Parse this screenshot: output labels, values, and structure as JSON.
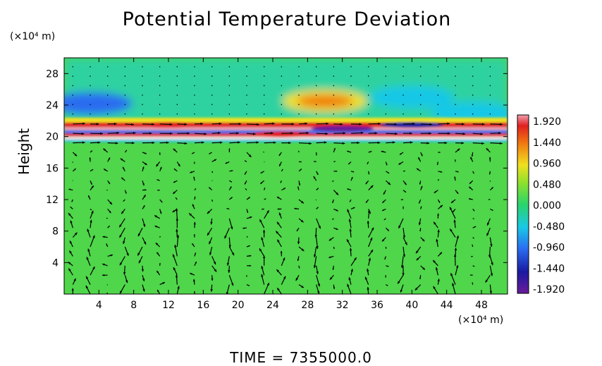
{
  "chart_data": {
    "type": "heatmap",
    "title": "Potential Temperature Deviation",
    "ylabel": "Height",
    "xunit": "(×10⁴ m)",
    "yunit": "(×10⁴ m)",
    "footer": "TIME  =  7355000.0",
    "xlim": [
      0,
      51
    ],
    "ylim": [
      0,
      30
    ],
    "xticks": [
      "4",
      "8",
      "12",
      "16",
      "20",
      "24",
      "28",
      "32",
      "36",
      "40",
      "44",
      "48"
    ],
    "yticks": [
      "4",
      "8",
      "12",
      "16",
      "20",
      "24",
      "28"
    ],
    "colorbar": {
      "min": -1.92,
      "max": 1.92,
      "labels": [
        "1.920",
        "1.440",
        "0.960",
        "0.480",
        "0.000",
        "-0.480",
        "-0.960",
        "-1.440",
        "-1.920"
      ]
    },
    "features": [
      {
        "x": 3,
        "y": 24.2,
        "value": -0.9
      },
      {
        "x": 30,
        "y": 24.5,
        "value": 0.9
      },
      {
        "x": 40,
        "y": 25,
        "value": -0.3
      },
      {
        "x": 47,
        "y": 23,
        "value": -0.5
      },
      {
        "x": 12,
        "y": 21.5,
        "value": 1.9
      },
      {
        "x": 32,
        "y": 21,
        "value": -1.9
      },
      {
        "x": 25,
        "y": 20.3,
        "value": 1.9
      },
      {
        "x": 40,
        "y": 21.5,
        "value": -1.4
      }
    ],
    "wind_field": "vector arrows"
  }
}
